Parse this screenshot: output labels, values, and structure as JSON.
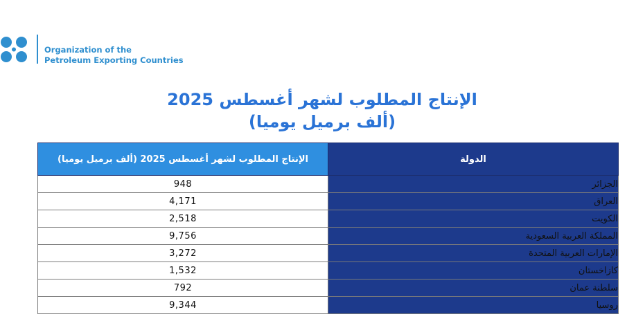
{
  "header": {
    "org_line1": "Organization of the",
    "org_line2": "Petroleum Exporting Countries",
    "brand_color": "#2f8fcf"
  },
  "title": {
    "line1": "الإنتاج المطلوب لشهر أغسطس 2025",
    "line2": "(ألف برميل يوميا)"
  },
  "table": {
    "columns": {
      "country": "الدولة",
      "value": "الإنتاج المطلوب لشهر  أغسطس 2025 (ألف برميل يوميا)"
    },
    "rows": [
      {
        "country": "الجزائر",
        "value": "948"
      },
      {
        "country": "العراق",
        "value": "4,171"
      },
      {
        "country": "الكويت",
        "value": "2,518"
      },
      {
        "country": "المملكة العربية السعودية",
        "value": "9,756"
      },
      {
        "country": "الإمارات العربية المتحدة",
        "value": "3,272"
      },
      {
        "country": "كازاخستان",
        "value": "1,532"
      },
      {
        "country": "سلطنة عمان",
        "value": "792"
      },
      {
        "country": "روسيا",
        "value": "9,344"
      }
    ]
  }
}
